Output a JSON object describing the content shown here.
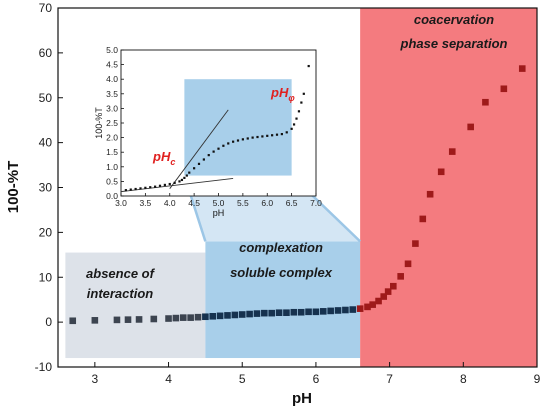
{
  "chart_data": [
    {
      "type": "scatter",
      "xlabel": "pH",
      "ylabel": "100-%T",
      "xlim": [
        2.5,
        9
      ],
      "ylim": [
        -10,
        70
      ],
      "xticks": [
        3,
        4,
        5,
        6,
        7,
        8,
        9
      ],
      "yticks": [
        -10,
        0,
        10,
        20,
        30,
        40,
        50,
        60,
        70
      ],
      "marker_color": "#111111",
      "series": [
        {
          "x": [
            2.7,
            3.0,
            3.3,
            3.45,
            3.6,
            3.8,
            4.0,
            4.1,
            4.2,
            4.3,
            4.4,
            4.5,
            4.6,
            4.7,
            4.8,
            4.9,
            5.0,
            5.1,
            5.2,
            5.3,
            5.4,
            5.5,
            5.6,
            5.7,
            5.8,
            5.9,
            6.0,
            6.1,
            6.2,
            6.3,
            6.4,
            6.5,
            6.6,
            6.7,
            6.77,
            6.85,
            6.92,
            6.98,
            7.05,
            7.15,
            7.25,
            7.35,
            7.45,
            7.55,
            7.7,
            7.85,
            8.1,
            8.3,
            8.55,
            8.8
          ],
          "y": [
            0.3,
            0.4,
            0.5,
            0.55,
            0.6,
            0.7,
            0.8,
            0.9,
            1.0,
            1.0,
            1.1,
            1.2,
            1.3,
            1.4,
            1.5,
            1.6,
            1.7,
            1.8,
            1.9,
            2.0,
            2.0,
            2.1,
            2.1,
            2.2,
            2.2,
            2.3,
            2.3,
            2.4,
            2.5,
            2.6,
            2.7,
            2.8,
            3.0,
            3.4,
            3.9,
            4.7,
            5.7,
            6.8,
            8.0,
            10.2,
            13.0,
            17.5,
            23.0,
            28.5,
            33.5,
            38.0,
            43.5,
            49.0,
            52.0,
            56.5
          ]
        }
      ],
      "regions": [
        {
          "label_lines": [
            "absence of",
            "interaction"
          ],
          "x": [
            2.6,
            4.5
          ],
          "y": [
            -8,
            15.5
          ],
          "color": "#dde2e9"
        },
        {
          "label_lines": [
            "complexation",
            "soluble complex"
          ],
          "x": [
            4.5,
            6.6
          ],
          "y": [
            -8,
            18
          ],
          "color": "#a8cfea"
        },
        {
          "label_lines": [
            "coacervation",
            "phase separation"
          ],
          "x": [
            6.6,
            9
          ],
          "y": [
            -10,
            70
          ],
          "color": "#f47b7f"
        }
      ]
    },
    {
      "type": "scatter",
      "xlabel": "pH",
      "ylabel": "100-%T",
      "xlim": [
        3.0,
        7.0
      ],
      "ylim": [
        0,
        5.0
      ],
      "xticks": [
        "3.0",
        "3.5",
        "4.0",
        "4.5",
        "5.0",
        "5.5",
        "6.0",
        "6.5",
        "7.0"
      ],
      "yticks": [
        "0.0",
        "0.5",
        "1.0",
        "1.5",
        "2.0",
        "2.5",
        "3.0",
        "3.5",
        "4.0",
        "4.5",
        "5.0"
      ],
      "series": [
        {
          "x": [
            3.1,
            3.2,
            3.3,
            3.4,
            3.5,
            3.6,
            3.7,
            3.8,
            3.9,
            4.0,
            4.1,
            4.2,
            4.25,
            4.3,
            4.35,
            4.4,
            4.5,
            4.6,
            4.7,
            4.8,
            4.9,
            5.0,
            5.1,
            5.2,
            5.3,
            5.4,
            5.5,
            5.6,
            5.7,
            5.8,
            5.9,
            6.0,
            6.1,
            6.2,
            6.3,
            6.4,
            6.5,
            6.55,
            6.6,
            6.65,
            6.7,
            6.75,
            6.85
          ],
          "y": [
            0.2,
            0.22,
            0.24,
            0.26,
            0.28,
            0.3,
            0.32,
            0.35,
            0.38,
            0.41,
            0.45,
            0.5,
            0.55,
            0.62,
            0.7,
            0.8,
            0.95,
            1.1,
            1.25,
            1.4,
            1.52,
            1.62,
            1.72,
            1.8,
            1.86,
            1.9,
            1.94,
            1.97,
            2.0,
            2.02,
            2.04,
            2.06,
            2.08,
            2.1,
            2.12,
            2.18,
            2.3,
            2.45,
            2.65,
            2.9,
            3.2,
            3.5,
            4.45
          ]
        }
      ],
      "tangents": [
        {
          "from": [
            3.0,
            0.15
          ],
          "to": [
            5.3,
            0.6
          ]
        },
        {
          "from": [
            4.0,
            0.25
          ],
          "to": [
            5.2,
            2.95
          ]
        }
      ],
      "highlight": {
        "x": [
          4.3,
          6.5
        ],
        "y": [
          0.7,
          4.0
        ],
        "color": "#a8cfea"
      },
      "annotations": [
        {
          "text": "pH",
          "sub": "c",
          "x": 4.1
        },
        {
          "text": "pH",
          "sub": "φ",
          "x": 6.5
        }
      ]
    }
  ]
}
